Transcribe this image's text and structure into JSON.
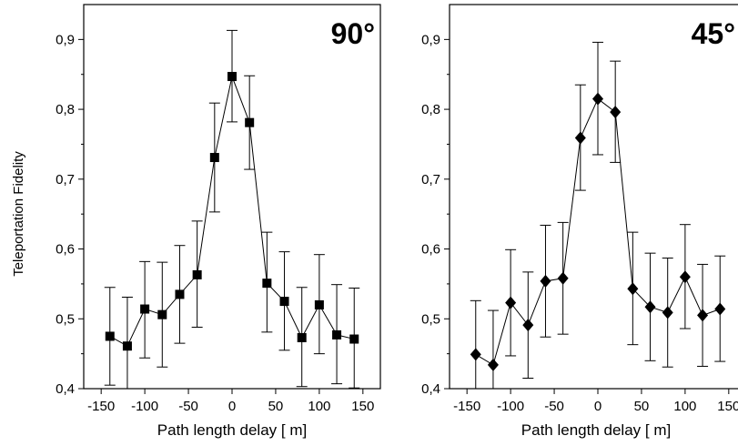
{
  "chart_data": [
    {
      "type": "scatter",
      "title": "90°",
      "xlabel": "Path length delay [ m]",
      "ylabel": "Teleportation Fidelity",
      "xlim": [
        -170,
        170
      ],
      "ylim": [
        0.4,
        0.95
      ],
      "xticks": [
        -150,
        -100,
        -50,
        0,
        50,
        100,
        150
      ],
      "xtick_labels": [
        "-150",
        "-100",
        "-50",
        "0",
        "50",
        "100",
        "150"
      ],
      "yticks": [
        0.4,
        0.5,
        0.6,
        0.7,
        0.8,
        0.9
      ],
      "ytick_labels": [
        "0,4",
        "0,5",
        "0,6",
        "0,7",
        "0,8",
        "0,9"
      ],
      "marker": "square",
      "connected": true,
      "grid": false,
      "series": [
        {
          "x": [
            -140,
            -120,
            -100,
            -80,
            -60,
            -40,
            -20,
            0,
            20,
            40,
            60,
            80,
            100,
            120,
            140
          ],
          "y": [
            0.475,
            0.461,
            0.514,
            0.506,
            0.535,
            0.563,
            0.731,
            0.847,
            0.781,
            0.551,
            0.525,
            0.473,
            0.52,
            0.477,
            0.471
          ],
          "err_low": [
            0.07,
            0.07,
            0.07,
            0.075,
            0.07,
            0.075,
            0.078,
            0.065,
            0.067,
            0.07,
            0.07,
            0.07,
            0.07,
            0.07,
            0.07
          ],
          "err_high": [
            0.07,
            0.07,
            0.068,
            0.075,
            0.07,
            0.077,
            0.078,
            0.066,
            0.067,
            0.073,
            0.071,
            0.072,
            0.072,
            0.072,
            0.073
          ]
        }
      ]
    },
    {
      "type": "scatter",
      "title": "45°",
      "xlabel": "Path length delay [ m]",
      "ylabel": "",
      "xlim": [
        -170,
        170
      ],
      "ylim": [
        0.4,
        0.95
      ],
      "xticks": [
        -150,
        -100,
        -50,
        0,
        50,
        100,
        150
      ],
      "xtick_labels": [
        "-150",
        "-100",
        "-50",
        "0",
        "50",
        "100",
        "150"
      ],
      "yticks": [
        0.4,
        0.5,
        0.6,
        0.7,
        0.8,
        0.9
      ],
      "ytick_labels": [
        "0,4",
        "0,5",
        "0,6",
        "0,7",
        "0,8",
        "0,9"
      ],
      "marker": "diamond",
      "connected": true,
      "grid": false,
      "series": [
        {
          "x": [
            -140,
            -120,
            -100,
            -80,
            -60,
            -40,
            -20,
            0,
            20,
            40,
            60,
            80,
            100,
            120,
            140
          ],
          "y": [
            0.449,
            0.434,
            0.523,
            0.491,
            0.554,
            0.558,
            0.759,
            0.815,
            0.796,
            0.543,
            0.517,
            0.509,
            0.56,
            0.505,
            0.514
          ],
          "err_low": [
            0.077,
            0.08,
            0.076,
            0.076,
            0.08,
            0.08,
            0.075,
            0.08,
            0.072,
            0.08,
            0.077,
            0.078,
            0.074,
            0.073,
            0.075
          ],
          "err_high": [
            0.077,
            0.078,
            0.076,
            0.076,
            0.08,
            0.08,
            0.076,
            0.081,
            0.073,
            0.081,
            0.077,
            0.078,
            0.075,
            0.073,
            0.076
          ]
        }
      ]
    }
  ]
}
